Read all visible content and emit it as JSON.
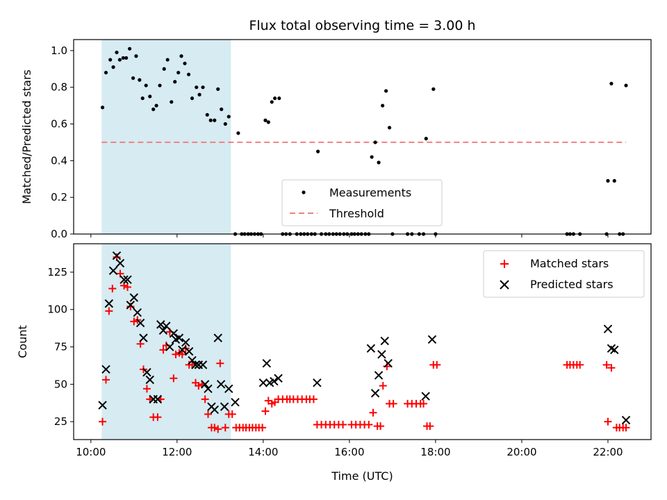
{
  "chart_data": [
    {
      "type": "scatter",
      "title": "Flux total observing time = 3.00 h",
      "xlabel": "",
      "ylabel": "Matched/Predicted stars",
      "xlim": [
        9.6,
        23.0
      ],
      "ylim": [
        0.0,
        1.06
      ],
      "yticks": [
        "0.0",
        "0.2",
        "0.4",
        "0.6",
        "0.8",
        "1.0"
      ],
      "shaded_span": [
        10.25,
        13.25
      ],
      "threshold": {
        "name": "Threshold",
        "value": 0.5,
        "x": [
          10.25,
          22.42
        ],
        "color": "#f08080"
      },
      "series": [
        {
          "name": "Measurements",
          "color": "#000000",
          "points": [
            [
              10.27,
              0.69
            ],
            [
              10.35,
              0.88
            ],
            [
              10.45,
              0.95
            ],
            [
              10.52,
              0.91
            ],
            [
              10.6,
              0.99
            ],
            [
              10.67,
              0.95
            ],
            [
              10.75,
              0.96
            ],
            [
              10.82,
              0.96
            ],
            [
              10.9,
              1.01
            ],
            [
              10.98,
              0.85
            ],
            [
              11.05,
              0.97
            ],
            [
              11.13,
              0.84
            ],
            [
              11.2,
              0.74
            ],
            [
              11.28,
              0.81
            ],
            [
              11.37,
              0.75
            ],
            [
              11.45,
              0.68
            ],
            [
              11.52,
              0.7
            ],
            [
              11.6,
              0.81
            ],
            [
              11.7,
              0.9
            ],
            [
              11.78,
              0.95
            ],
            [
              11.87,
              0.72
            ],
            [
              11.95,
              0.83
            ],
            [
              12.03,
              0.88
            ],
            [
              12.1,
              0.97
            ],
            [
              12.18,
              0.93
            ],
            [
              12.27,
              0.87
            ],
            [
              12.35,
              0.74
            ],
            [
              12.45,
              0.8
            ],
            [
              12.52,
              0.76
            ],
            [
              12.6,
              0.8
            ],
            [
              12.7,
              0.65
            ],
            [
              12.78,
              0.62
            ],
            [
              12.87,
              0.62
            ],
            [
              12.95,
              0.79
            ],
            [
              13.03,
              0.68
            ],
            [
              13.12,
              0.6
            ],
            [
              13.2,
              0.64
            ],
            [
              13.35,
              0.0
            ],
            [
              13.42,
              0.55
            ],
            [
              13.5,
              0.0
            ],
            [
              13.57,
              0.0
            ],
            [
              13.65,
              0.0
            ],
            [
              13.72,
              0.0
            ],
            [
              13.8,
              0.0
            ],
            [
              13.88,
              0.0
            ],
            [
              13.95,
              0.0
            ],
            [
              14.05,
              0.62
            ],
            [
              14.12,
              0.61
            ],
            [
              14.2,
              0.72
            ],
            [
              14.27,
              0.74
            ],
            [
              14.37,
              0.74
            ],
            [
              14.45,
              0.0
            ],
            [
              14.53,
              0.0
            ],
            [
              14.62,
              0.0
            ],
            [
              14.78,
              0.0
            ],
            [
              14.87,
              0.0
            ],
            [
              14.95,
              0.0
            ],
            [
              15.03,
              0.0
            ],
            [
              15.12,
              0.0
            ],
            [
              15.2,
              0.0
            ],
            [
              15.27,
              0.45
            ],
            [
              15.35,
              0.0
            ],
            [
              15.45,
              0.0
            ],
            [
              15.53,
              0.0
            ],
            [
              15.62,
              0.0
            ],
            [
              15.7,
              0.0
            ],
            [
              15.78,
              0.0
            ],
            [
              15.87,
              0.0
            ],
            [
              15.95,
              0.0
            ],
            [
              16.05,
              0.0
            ],
            [
              16.12,
              0.0
            ],
            [
              16.2,
              0.0
            ],
            [
              16.28,
              0.0
            ],
            [
              16.37,
              0.0
            ],
            [
              16.45,
              0.0
            ],
            [
              16.52,
              0.42
            ],
            [
              16.6,
              0.5
            ],
            [
              16.68,
              0.39
            ],
            [
              16.77,
              0.7
            ],
            [
              16.85,
              0.78
            ],
            [
              16.93,
              0.58
            ],
            [
              17.0,
              0.0
            ],
            [
              17.35,
              0.0
            ],
            [
              17.45,
              0.0
            ],
            [
              17.62,
              0.0
            ],
            [
              17.72,
              0.0
            ],
            [
              17.78,
              0.52
            ],
            [
              17.95,
              0.79
            ],
            [
              18.0,
              0.0
            ],
            [
              21.05,
              0.0
            ],
            [
              21.12,
              0.0
            ],
            [
              21.2,
              0.0
            ],
            [
              21.35,
              0.0
            ],
            [
              21.97,
              0.0
            ],
            [
              22.0,
              0.29
            ],
            [
              22.08,
              0.82
            ],
            [
              22.15,
              0.29
            ],
            [
              22.27,
              0.0
            ],
            [
              22.35,
              0.0
            ],
            [
              22.42,
              0.81
            ]
          ]
        }
      ],
      "legend": {
        "position": "lower-center",
        "entries": [
          "Measurements",
          "Threshold"
        ]
      }
    },
    {
      "type": "scatter",
      "title": "",
      "xlabel": "Time (UTC)",
      "ylabel": "Count",
      "xlim": [
        9.6,
        23.0
      ],
      "ylim": [
        13,
        144
      ],
      "xticks": [
        "10:00",
        "12:00",
        "14:00",
        "16:00",
        "18:00",
        "20:00",
        "22:00"
      ],
      "xtick_values": [
        10,
        12,
        14,
        16,
        18,
        20,
        22
      ],
      "yticks": [
        "25",
        "50",
        "75",
        "100",
        "125"
      ],
      "shaded_span": [
        10.25,
        13.25
      ],
      "series": [
        {
          "name": "Matched stars",
          "color": "#ff0000",
          "marker": "plus",
          "points": [
            [
              10.27,
              25
            ],
            [
              10.35,
              53
            ],
            [
              10.42,
              99
            ],
            [
              10.5,
              114
            ],
            [
              10.6,
              135
            ],
            [
              10.68,
              124
            ],
            [
              10.77,
              116
            ],
            [
              10.85,
              115
            ],
            [
              10.92,
              102
            ],
            [
              11.0,
              92
            ],
            [
              11.08,
              93
            ],
            [
              11.15,
              77
            ],
            [
              11.22,
              60
            ],
            [
              11.3,
              47
            ],
            [
              11.37,
              40
            ],
            [
              11.45,
              28
            ],
            [
              11.55,
              28
            ],
            [
              11.62,
              40
            ],
            [
              11.68,
              73
            ],
            [
              11.75,
              76
            ],
            [
              11.83,
              85
            ],
            [
              11.92,
              54
            ],
            [
              11.97,
              70
            ],
            [
              12.05,
              71
            ],
            [
              12.12,
              70
            ],
            [
              12.2,
              74
            ],
            [
              12.28,
              63
            ],
            [
              12.35,
              63
            ],
            [
              12.43,
              51
            ],
            [
              12.5,
              49
            ],
            [
              12.58,
              50
            ],
            [
              12.65,
              40
            ],
            [
              12.72,
              30
            ],
            [
              12.8,
              21
            ],
            [
              12.87,
              21
            ],
            [
              12.95,
              20
            ],
            [
              13.0,
              64
            ],
            [
              13.12,
              21
            ],
            [
              13.2,
              30
            ],
            [
              13.28,
              30
            ],
            [
              13.37,
              21
            ],
            [
              13.45,
              21
            ],
            [
              13.53,
              21
            ],
            [
              13.6,
              21
            ],
            [
              13.68,
              21
            ],
            [
              13.75,
              21
            ],
            [
              13.83,
              21
            ],
            [
              13.9,
              21
            ],
            [
              13.98,
              21
            ],
            [
              14.05,
              32
            ],
            [
              14.12,
              39
            ],
            [
              14.2,
              37
            ],
            [
              14.27,
              38
            ],
            [
              14.35,
              40
            ],
            [
              14.45,
              40
            ],
            [
              14.55,
              40
            ],
            [
              14.62,
              40
            ],
            [
              14.7,
              40
            ],
            [
              14.8,
              40
            ],
            [
              14.9,
              40
            ],
            [
              15.0,
              40
            ],
            [
              15.08,
              40
            ],
            [
              15.17,
              40
            ],
            [
              15.25,
              23
            ],
            [
              15.35,
              23
            ],
            [
              15.45,
              23
            ],
            [
              15.55,
              23
            ],
            [
              15.65,
              23
            ],
            [
              15.75,
              23
            ],
            [
              15.85,
              23
            ],
            [
              16.05,
              23
            ],
            [
              16.15,
              23
            ],
            [
              16.25,
              23
            ],
            [
              16.35,
              23
            ],
            [
              16.45,
              23
            ],
            [
              16.55,
              31
            ],
            [
              16.65,
              22
            ],
            [
              16.72,
              22
            ],
            [
              16.78,
              49
            ],
            [
              16.87,
              62
            ],
            [
              16.93,
              37
            ],
            [
              17.02,
              37
            ],
            [
              17.35,
              37
            ],
            [
              17.45,
              37
            ],
            [
              17.55,
              37
            ],
            [
              17.65,
              37
            ],
            [
              17.72,
              37
            ],
            [
              17.8,
              22
            ],
            [
              17.87,
              22
            ],
            [
              17.95,
              63
            ],
            [
              18.03,
              63
            ],
            [
              21.05,
              63
            ],
            [
              21.12,
              63
            ],
            [
              21.2,
              63
            ],
            [
              21.28,
              63
            ],
            [
              21.35,
              63
            ],
            [
              21.97,
              63
            ],
            [
              22.0,
              25
            ],
            [
              22.08,
              61
            ],
            [
              22.2,
              21
            ],
            [
              22.27,
              21
            ],
            [
              22.35,
              21
            ],
            [
              22.42,
              21
            ]
          ]
        },
        {
          "name": "Predicted stars",
          "color": "#000000",
          "marker": "x",
          "points": [
            [
              10.27,
              36
            ],
            [
              10.35,
              60
            ],
            [
              10.42,
              104
            ],
            [
              10.52,
              126
            ],
            [
              10.6,
              136
            ],
            [
              10.68,
              131
            ],
            [
              10.77,
              120
            ],
            [
              10.85,
              120
            ],
            [
              10.92,
              103
            ],
            [
              11.0,
              108
            ],
            [
              11.08,
              98
            ],
            [
              11.15,
              91
            ],
            [
              11.22,
              81
            ],
            [
              11.3,
              58
            ],
            [
              11.37,
              53
            ],
            [
              11.45,
              40
            ],
            [
              11.55,
              40
            ],
            [
              11.62,
              90
            ],
            [
              11.68,
              86
            ],
            [
              11.75,
              89
            ],
            [
              11.83,
              75
            ],
            [
              11.92,
              84
            ],
            [
              11.97,
              80
            ],
            [
              12.05,
              81
            ],
            [
              12.12,
              73
            ],
            [
              12.2,
              78
            ],
            [
              12.28,
              72
            ],
            [
              12.35,
              66
            ],
            [
              12.43,
              63
            ],
            [
              12.5,
              63
            ],
            [
              12.6,
              63
            ],
            [
              12.65,
              50
            ],
            [
              12.72,
              47
            ],
            [
              12.8,
              35
            ],
            [
              12.87,
              33
            ],
            [
              12.95,
              81
            ],
            [
              13.02,
              50
            ],
            [
              13.1,
              35
            ],
            [
              13.2,
              47
            ],
            [
              13.35,
              38
            ],
            [
              14.0,
              51
            ],
            [
              14.08,
              64
            ],
            [
              14.15,
              51
            ],
            [
              14.25,
              52
            ],
            [
              14.35,
              54
            ],
            [
              15.25,
              51
            ],
            [
              16.5,
              74
            ],
            [
              16.6,
              44
            ],
            [
              16.68,
              56
            ],
            [
              16.75,
              70
            ],
            [
              16.82,
              79
            ],
            [
              16.9,
              64
            ],
            [
              17.77,
              42
            ],
            [
              17.92,
              80
            ],
            [
              22.0,
              87
            ],
            [
              22.08,
              74
            ],
            [
              22.15,
              73
            ],
            [
              22.42,
              26
            ]
          ]
        }
      ],
      "legend": {
        "position": "top-right",
        "entries": [
          "Matched stars",
          "Predicted stars"
        ]
      }
    }
  ]
}
